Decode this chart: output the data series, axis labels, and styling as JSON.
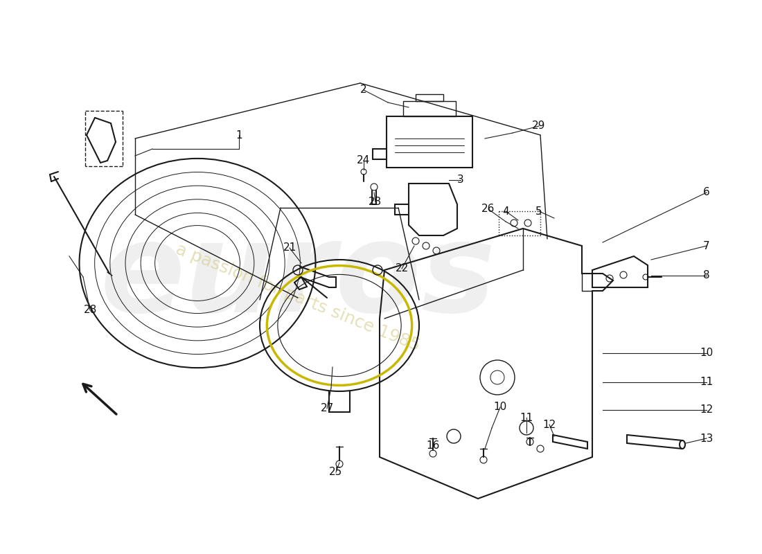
{
  "bg_color": "#ffffff",
  "line_color": "#1a1a1a",
  "watermark_text1": "euros",
  "watermark_text2": "a passion for parts since 1985",
  "part_labels_img": [
    [
      "1",
      345,
      195
    ],
    [
      "2",
      525,
      130
    ],
    [
      "3",
      665,
      260
    ],
    [
      "4",
      730,
      305
    ],
    [
      "5",
      778,
      305
    ],
    [
      "6",
      1020,
      278
    ],
    [
      "7",
      1020,
      355
    ],
    [
      "8",
      1020,
      398
    ],
    [
      "10",
      722,
      588
    ],
    [
      "10",
      1020,
      510
    ],
    [
      "11",
      760,
      603
    ],
    [
      "11",
      1020,
      552
    ],
    [
      "12",
      793,
      613
    ],
    [
      "12",
      1020,
      592
    ],
    [
      "13",
      1020,
      633
    ],
    [
      "16",
      625,
      643
    ],
    [
      "21",
      418,
      358
    ],
    [
      "22",
      580,
      388
    ],
    [
      "23",
      542,
      292
    ],
    [
      "24",
      525,
      232
    ],
    [
      "25",
      485,
      682
    ],
    [
      "26",
      705,
      302
    ],
    [
      "27",
      472,
      590
    ],
    [
      "28",
      130,
      448
    ],
    [
      "29",
      778,
      182
    ]
  ]
}
